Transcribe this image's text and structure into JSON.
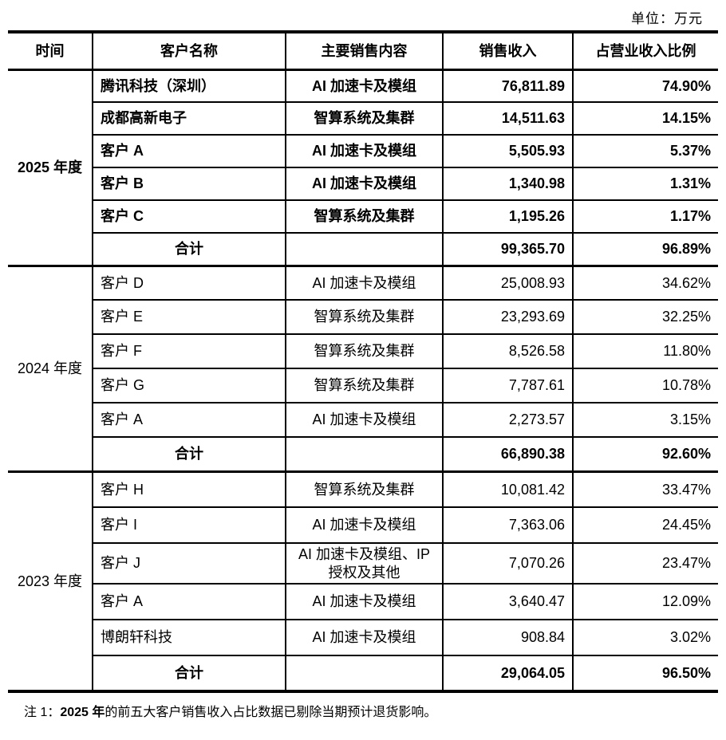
{
  "unit_label": "单位：万元",
  "note": {
    "prefix": "注 1：",
    "bold": "2025 年",
    "rest": "的前五大客户销售收入占比数据已剔除当期预计退货影响。"
  },
  "table": {
    "headers": {
      "time": "时间",
      "customer": "客户名称",
      "content": "主要销售内容",
      "revenue": "销售收入",
      "ratio": "占营业收入比例"
    },
    "total_label": "合计",
    "sections": [
      {
        "period": "2025 年度",
        "rows": [
          {
            "customer": "腾讯科技（深圳）",
            "content": "AI 加速卡及模组",
            "revenue": "76,811.89",
            "ratio": "74.90%"
          },
          {
            "customer": "成都高新电子",
            "content": "智算系统及集群",
            "revenue": "14,511.63",
            "ratio": "14.15%"
          },
          {
            "customer": "客户 A",
            "content": "AI 加速卡及模组",
            "revenue": "5,505.93",
            "ratio": "5.37%"
          },
          {
            "customer": "客户 B",
            "content": "AI 加速卡及模组",
            "revenue": "1,340.98",
            "ratio": "1.31%"
          },
          {
            "customer": "客户 C",
            "content": "智算系统及集群",
            "revenue": "1,195.26",
            "ratio": "1.17%"
          }
        ],
        "total": {
          "revenue": "99,365.70",
          "ratio": "96.89%"
        }
      },
      {
        "period": "2024 年度",
        "rows": [
          {
            "customer": "客户 D",
            "content": "AI 加速卡及模组",
            "revenue": "25,008.93",
            "ratio": "34.62%"
          },
          {
            "customer": "客户 E",
            "content": "智算系统及集群",
            "revenue": "23,293.69",
            "ratio": "32.25%"
          },
          {
            "customer": "客户 F",
            "content": "智算系统及集群",
            "revenue": "8,526.58",
            "ratio": "11.80%"
          },
          {
            "customer": "客户 G",
            "content": "智算系统及集群",
            "revenue": "7,787.61",
            "ratio": "10.78%"
          },
          {
            "customer": "客户 A",
            "content": "AI 加速卡及模组",
            "revenue": "2,273.57",
            "ratio": "3.15%"
          }
        ],
        "total": {
          "revenue": "66,890.38",
          "ratio": "92.60%"
        }
      },
      {
        "period": "2023 年度",
        "rows": [
          {
            "customer": "客户 H",
            "content": "智算系统及集群",
            "revenue": "10,081.42",
            "ratio": "33.47%"
          },
          {
            "customer": "客户 I",
            "content": "AI 加速卡及模组",
            "revenue": "7,363.06",
            "ratio": "24.45%"
          },
          {
            "customer": "客户 J",
            "content": "AI 加速卡及模组、IP 授权及其他",
            "revenue": "7,070.26",
            "ratio": "23.47%"
          },
          {
            "customer": "客户 A",
            "content": "AI 加速卡及模组",
            "revenue": "3,640.47",
            "ratio": "12.09%"
          },
          {
            "customer": "博朗轩科技",
            "content": "AI 加速卡及模组",
            "revenue": "908.84",
            "ratio": "3.02%"
          }
        ],
        "total": {
          "revenue": "29,064.05",
          "ratio": "96.50%"
        }
      }
    ]
  }
}
